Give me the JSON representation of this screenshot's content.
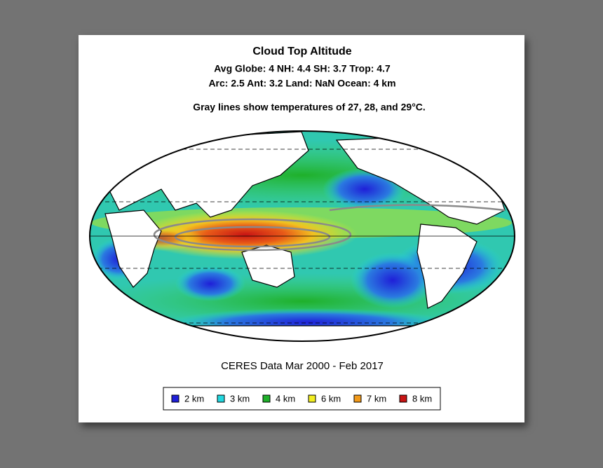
{
  "title": "Cloud Top Altitude",
  "stats": [
    "Avg Globe: 4  NH: 4.4  SH: 3.7  Trop: 4.7",
    "Arc: 2.5  Ant: 3.2  Land: NaN Ocean: 4 km"
  ],
  "note": "Gray lines show temperatures of 27, 28, and 29°C.",
  "source": "CERES Data Mar 2000 - Feb 2017",
  "legend": [
    {
      "label": "2 km",
      "color": "#1f1fd8"
    },
    {
      "label": "3 km",
      "color": "#22d8e0"
    },
    {
      "label": "4 km",
      "color": "#1fb02a"
    },
    {
      "label": "6 km",
      "color": "#f2ee20"
    },
    {
      "label": "7 km",
      "color": "#f29a1a"
    },
    {
      "label": "8 km",
      "color": "#c81414"
    }
  ]
}
